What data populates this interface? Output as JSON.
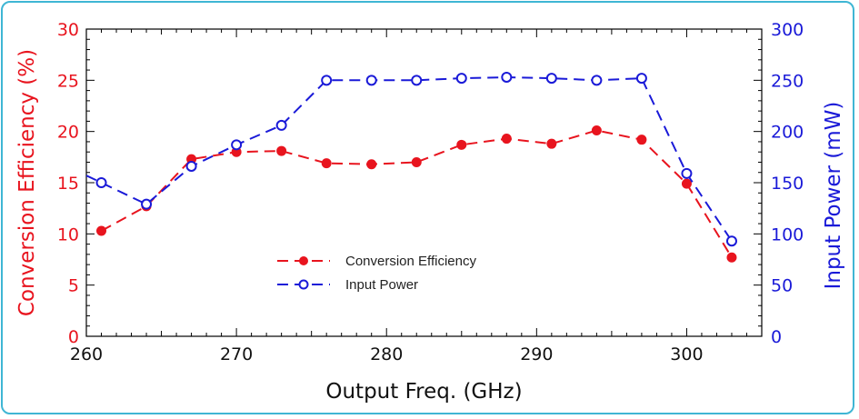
{
  "chart_data": {
    "type": "line",
    "x": [
      261,
      264,
      267,
      270,
      273,
      276,
      279,
      282,
      285,
      288,
      291,
      294,
      297,
      300,
      303
    ],
    "xlabel": "Output Freq. (GHz)",
    "xlim": [
      260,
      305
    ],
    "x_ticks": [
      260,
      270,
      280,
      290,
      300
    ],
    "x_tick_labels": [
      "260",
      "270",
      "280",
      "290",
      "300"
    ],
    "y_left": {
      "label": "Conversion Efficiency (%)",
      "lim": [
        0,
        30
      ],
      "ticks": [
        0,
        5,
        10,
        15,
        20,
        25,
        30
      ],
      "tick_labels": [
        "0",
        "5",
        "10",
        "15",
        "20",
        "25",
        "30"
      ],
      "color": "#e8141e"
    },
    "y_right": {
      "label": "Input Power (mW)",
      "lim": [
        0,
        300
      ],
      "ticks": [
        0,
        50,
        100,
        150,
        200,
        250,
        300
      ],
      "tick_labels": [
        "0",
        "50",
        "100",
        "150",
        "200",
        "250",
        "300"
      ],
      "color": "#1a1ad8"
    },
    "series": [
      {
        "name": "Conversion Efficiency",
        "axis": "left",
        "color": "#e8141e",
        "marker": "filled-circle",
        "line": "dashed",
        "values": [
          10.3,
          12.7,
          17.3,
          18.0,
          18.1,
          16.9,
          16.8,
          17.0,
          18.7,
          19.3,
          18.8,
          20.1,
          19.2,
          14.9,
          7.7
        ]
      },
      {
        "name": "Input Power",
        "axis": "right",
        "color": "#1a1ad8",
        "marker": "open-circle",
        "line": "dashed",
        "values": [
          150,
          129,
          166,
          187,
          206,
          250,
          250,
          250,
          252,
          253,
          252,
          250,
          252,
          159,
          93
        ]
      }
    ],
    "legend": "center-left",
    "grid": false
  }
}
